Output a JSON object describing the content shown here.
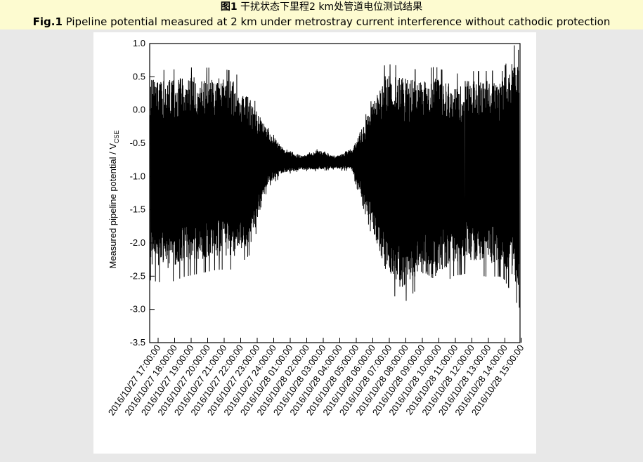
{
  "caption": {
    "cn_prefix": "图1",
    "cn_text": " 干扰状态下里程2 km处管道电位测试结果",
    "en_prefix": "Fig.1",
    "en_text": " Pipeline potential measured at 2 km under metrostray current interference without cathodic protection"
  },
  "chart_data": {
    "type": "line",
    "title": "",
    "xlabel": "",
    "ylabel_main": "Measured pipeline potential / V",
    "ylabel_sub": "CSE",
    "ylim": [
      -3.5,
      1.0
    ],
    "ytick_labels": [
      "1.0",
      "0.5",
      "0.0",
      "-0.5",
      "-1.0",
      "-1.5",
      "-2.0",
      "-2.5",
      "-3.0",
      "-3.5"
    ],
    "xtick_labels": [
      "2016/10/27 17:00:00",
      "2016/10/27 18:00:00",
      "2016/10/27 19:00:00",
      "2016/10/27 20:00:00",
      "2016/10/27 21:00:00",
      "2016/10/27 22:00:00",
      "2016/10/27 23:00:00",
      "2016/10/27 24:00:00",
      "2016/10/28 01:00:00",
      "2016/10/28 02:00:00",
      "2016/10/28 03:00:00",
      "2016/10/28 04:00:00",
      "2016/10/28 05:00:00",
      "2016/10/28 06:00:00",
      "2016/10/28 07:00:00",
      "2016/10/28 08:00:00",
      "2016/10/28 09:00:00",
      "2016/10/28 10:00:00",
      "2016/10/28 11:00:00",
      "2016/10/28 12:00:00",
      "2016/10/28 13:00:00",
      "2016/10/28 14:00:00",
      "2016/10/28 15:00:00"
    ],
    "series": [
      {
        "color": "#000000",
        "x": [
          "2016/10/27 17:00:00",
          "2016/10/27 18:00:00",
          "2016/10/27 19:00:00",
          "2016/10/27 20:00:00",
          "2016/10/27 21:00:00",
          "2016/10/27 22:00:00",
          "2016/10/27 23:00:00",
          "2016/10/27 24:00:00",
          "2016/10/28 01:00:00",
          "2016/10/28 02:00:00",
          "2016/10/28 03:00:00",
          "2016/10/28 04:00:00",
          "2016/10/28 05:00:00",
          "2016/10/28 06:00:00",
          "2016/10/28 07:00:00",
          "2016/10/28 08:00:00",
          "2016/10/28 09:00:00",
          "2016/10/28 10:00:00",
          "2016/10/28 11:00:00",
          "2016/10/28 12:00:00",
          "2016/10/28 13:00:00",
          "2016/10/28 14:00:00",
          "2016/10/28 15:00:00"
        ],
        "upper_envelope": [
          0.5,
          0.45,
          0.5,
          0.5,
          0.5,
          0.45,
          0.15,
          -0.3,
          -0.6,
          -0.7,
          -0.6,
          -0.7,
          -0.6,
          -0.05,
          0.55,
          0.5,
          0.45,
          0.5,
          0.4,
          0.45,
          0.45,
          0.45,
          0.95
        ],
        "lower_envelope": [
          -2.35,
          -2.4,
          -2.3,
          -2.25,
          -2.2,
          -2.2,
          -2.0,
          -1.1,
          -0.95,
          -0.9,
          -0.9,
          -0.88,
          -0.9,
          -1.6,
          -2.4,
          -2.7,
          -2.45,
          -2.55,
          -2.3,
          -2.25,
          -2.3,
          -2.3,
          -2.7
        ]
      }
    ],
    "grid": false,
    "legend": "none",
    "colors": {
      "plot_line": "#000000",
      "caption_bg": "#fdfbd0",
      "page_bg": "#e8e8e8"
    }
  }
}
